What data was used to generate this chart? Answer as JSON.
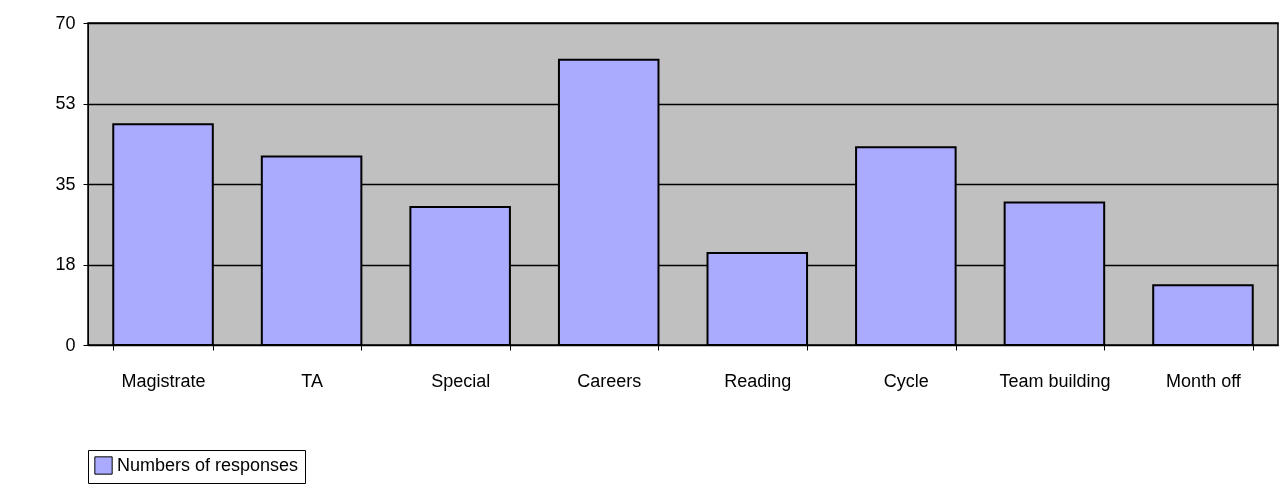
{
  "chart_data": {
    "type": "bar",
    "categories": [
      "Magistrate",
      "TA",
      "Special",
      "Careers",
      "Reading",
      "Cycle",
      "Team building",
      "Month off"
    ],
    "series": [
      {
        "name": "Numbers of responses",
        "color": "#aaaaff",
        "values": [
          48,
          41,
          30,
          62,
          20,
          43,
          31,
          13
        ]
      }
    ],
    "ylim": [
      0,
      70
    ],
    "yticks": [
      0,
      {
        "value": 17.5,
        "label": "18"
      },
      35,
      {
        "value": 52.5,
        "label": "53"
      },
      70
    ],
    "grid": "y",
    "legend": "bottom"
  }
}
